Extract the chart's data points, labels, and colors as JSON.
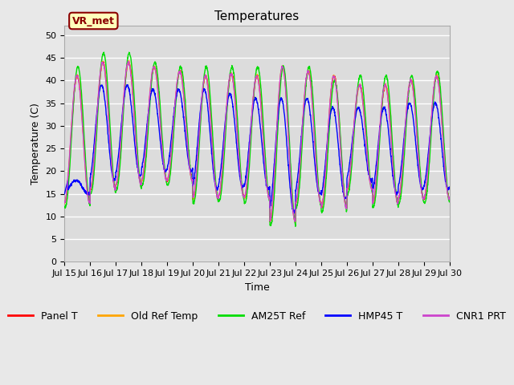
{
  "title": "Temperatures",
  "xlabel": "Time",
  "ylabel": "Temperature (C)",
  "ylim": [
    0,
    52
  ],
  "yticks": [
    0,
    5,
    10,
    15,
    20,
    25,
    30,
    35,
    40,
    45,
    50
  ],
  "annotation_text": "VR_met",
  "series": {
    "Panel T": {
      "color": "#ff0000",
      "lw": 1.0
    },
    "Old Ref Temp": {
      "color": "#ffa500",
      "lw": 1.0
    },
    "AM25T Ref": {
      "color": "#00dd00",
      "lw": 1.0
    },
    "HMP45 T": {
      "color": "#0000ff",
      "lw": 1.0
    },
    "CNR1 PRT": {
      "color": "#cc44cc",
      "lw": 1.0
    }
  },
  "bg_color": "#dcdcdc",
  "fig_bg_color": "#e8e8e8",
  "grid_color": "#ffffff",
  "title_fontsize": 11,
  "axis_label_fontsize": 9,
  "tick_fontsize": 8,
  "legend_fontsize": 9,
  "daily_min": [
    13,
    16,
    17,
    18,
    18,
    14,
    14.5,
    14,
    9,
    13,
    12,
    16,
    13,
    14,
    14
  ],
  "daily_max_panel": [
    41,
    44,
    44,
    43,
    42,
    41,
    41.5,
    41,
    43,
    42,
    41,
    39,
    39,
    40,
    41
  ],
  "daily_max_green": [
    43,
    46,
    46,
    44,
    43,
    43,
    43,
    43,
    43,
    43,
    40,
    41,
    41,
    41,
    42
  ],
  "daily_max_blue": [
    18,
    39,
    39,
    38,
    38,
    38,
    37,
    36,
    36,
    36,
    34,
    34,
    34,
    35,
    35
  ],
  "n_days": 15,
  "pts_per_day": 144
}
